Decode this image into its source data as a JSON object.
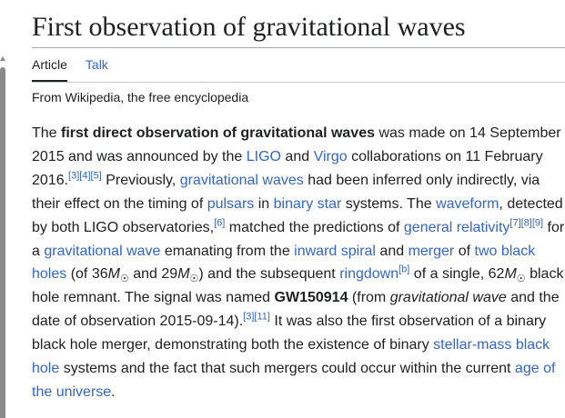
{
  "page": {
    "title": "First observation of gravitational waves",
    "tagline": "From Wikipedia, the free encyclopedia"
  },
  "tabs": [
    {
      "label": "Article",
      "selected": true
    },
    {
      "label": "Talk",
      "selected": false
    }
  ],
  "lead": {
    "t1": "The ",
    "b1": "first direct observation of gravitational waves",
    "t2": " was made on 14 September 2015 and was announced by the ",
    "l_ligo": "LIGO",
    "t3": " and ",
    "l_virgo": "Virgo",
    "t4": " collaborations on 11 February 2016.",
    "ref345": "[3][4][5]",
    "t5": " Previously, ",
    "l_gw": "gravitational waves",
    "t6": " had been inferred only indirectly, via their effect on the timing of ",
    "l_pulsars": "pulsars",
    "t7": " in ",
    "l_binary": "binary star",
    "t8": " systems. The ",
    "l_waveform": "waveform",
    "t9": ", detected by both LIGO observatories,",
    "ref6": "[6]",
    "t10": " matched the predictions of ",
    "l_gr": "general relativity",
    "ref789": "[7][8][9]",
    "t11": " for a ",
    "l_gwave": "gravitational wave",
    "t12": " emanating from the ",
    "l_inspiral": "inward spiral",
    "t13": " and ",
    "l_merger": "merger",
    "t14": " of ",
    "l_bh": "two black holes",
    "t15": " (of 36",
    "msun_m": "M",
    "msun_s": "☉",
    "t16": " and 29",
    "t17": ") and the subsequent ",
    "l_ringdown": "ringdown",
    "refb": "[b]",
    "t18": " of a single, 62",
    "t19": " black hole remnant. The signal was named ",
    "b2": "GW150914",
    "t20": " (from ",
    "i1": "gravitational wave",
    "t21": " and the date of observation 2015-09-14).",
    "ref311": "[3][11]",
    "t22": " It was also the first observation of a binary black hole merger, demonstrating both the existence of binary ",
    "l_stellar": "stellar-mass black hole",
    "t23": " systems and the fact that such mergers could occur within the current ",
    "l_age": "age of the universe",
    "t24": "."
  },
  "colors": {
    "link": "#3366cc",
    "text": "#202122",
    "rule": "#a2a9b1",
    "scrollbar": "#8a8a8a"
  }
}
